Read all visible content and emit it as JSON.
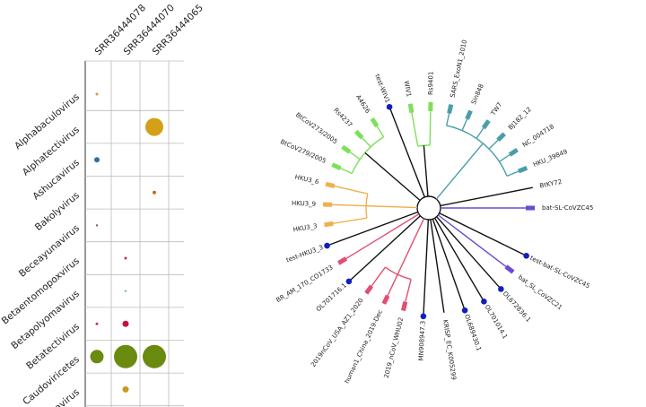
{
  "chart_data": {
    "type": "bubble",
    "columns": [
      "SRR36444078",
      "SRR36444070",
      "SRR36444065"
    ],
    "rows": [
      "Alphabaculovirus",
      "Alphatectivirus",
      "Ashucavirus",
      "Bakolyvirus",
      "Beceayunavirus",
      "Betaentomopoxvirus",
      "Betapolyomavirus",
      "Betatectivirus",
      "Caudoviricetes",
      "navirus"
    ],
    "points": [
      {
        "x": "SRR36444078",
        "y": "Alphabaculovirus",
        "size": 1.5,
        "color": "#c8a040"
      },
      {
        "x": "SRR36444065",
        "y": "Alphatectivirus",
        "size": 10,
        "color": "#d4a017"
      },
      {
        "x": "SRR36444078",
        "y": "Ashucavirus",
        "size": 3,
        "color": "#2f6fa8"
      },
      {
        "x": "SRR36444065",
        "y": "Bakolyvirus",
        "size": 2,
        "color": "#c07020"
      },
      {
        "x": "SRR36444078",
        "y": "Beceayunavirus",
        "size": 1.2,
        "color": "#8a4a8a"
      },
      {
        "x": "SRR36444070",
        "y": "Betaentomopoxvirus",
        "size": 1.5,
        "color": "#d03040"
      },
      {
        "x": "SRR36444070",
        "y": "Betapolyomavirus",
        "size": 1,
        "color": "#40a090"
      },
      {
        "x": "SRR36444078",
        "y": "Betatectivirus",
        "size": 1.5,
        "color": "#d03060"
      },
      {
        "x": "SRR36444070",
        "y": "Betatectivirus",
        "size": 3.5,
        "color": "#c8103a"
      },
      {
        "x": "SRR36444078",
        "y": "Caudoviricetes",
        "size": 7.5,
        "color": "#6b8a10"
      },
      {
        "x": "SRR36444070",
        "y": "Caudoviricetes",
        "size": 13,
        "color": "#6b8a10"
      },
      {
        "x": "SRR36444065",
        "y": "Caudoviricetes",
        "size": 13,
        "color": "#6b8a10"
      },
      {
        "x": "SRR36444070",
        "y": "navirus",
        "size": 3.5,
        "color": "#c89a20"
      }
    ]
  },
  "tree": {
    "leaves": [
      {
        "label": "bat-SL-CoVZC45",
        "color": "#6a4ad6",
        "marked": false
      },
      {
        "label": "BtKY72",
        "color": "#111111",
        "marked": false
      },
      {
        "label": "HKU_39849",
        "color": "#4a9ea8",
        "marked": false
      },
      {
        "label": "NC_004718",
        "color": "#4a9ea8",
        "marked": false
      },
      {
        "label": "BJ182_12",
        "color": "#4a9ea8",
        "marked": false
      },
      {
        "label": "TW7",
        "color": "#4a9ea8",
        "marked": false
      },
      {
        "label": "Sin848",
        "color": "#4a9ea8",
        "marked": false
      },
      {
        "label": "SARS_ExoN1_2010",
        "color": "#4a9ea8",
        "marked": false
      },
      {
        "label": "Rs9401",
        "color": "#7ee05a",
        "marked": false
      },
      {
        "label": "WIV1",
        "color": "#7ee05a",
        "marked": false
      },
      {
        "label": "test-WIV1",
        "color": "#111111",
        "marked": true
      },
      {
        "label": "A4626",
        "color": "#7ee05a",
        "marked": false
      },
      {
        "label": "Rs4237",
        "color": "#7ee05a",
        "marked": false
      },
      {
        "label": "BtCoV273/2005",
        "color": "#7ee05a",
        "marked": false
      },
      {
        "label": "BtCoV279/2005",
        "color": "#7ee05a",
        "marked": false
      },
      {
        "label": "HKU3_6",
        "color": "#f0b050",
        "marked": false
      },
      {
        "label": "HKU3_9",
        "color": "#f0b050",
        "marked": false
      },
      {
        "label": "HKU3_3",
        "color": "#f0b050",
        "marked": false
      },
      {
        "label": "test-HKU3_3",
        "color": "#111111",
        "marked": true
      },
      {
        "label": "BR_AM_170_CO1733",
        "color": "#e05070",
        "marked": false
      },
      {
        "label": "OL701716.1",
        "color": "#111111",
        "marked": true
      },
      {
        "label": "2019nCoV_USA_AZ1_2020",
        "color": "#e05070",
        "marked": false
      },
      {
        "label": "human1_China_2019-Dec",
        "color": "#e05070",
        "marked": false
      },
      {
        "label": "2019_nCoV_WHU02",
        "color": "#e05070",
        "marked": false
      },
      {
        "label": "MN908947.3",
        "color": "#111111",
        "marked": true
      },
      {
        "label": "KRISP_EC_K005299",
        "color": "#111111",
        "marked": false
      },
      {
        "label": "OL689430.1",
        "color": "#111111",
        "marked": true
      },
      {
        "label": "OL701014.1",
        "color": "#111111",
        "marked": true
      },
      {
        "label": "OL672836.1",
        "color": "#111111",
        "marked": true
      },
      {
        "label": "bat_SL_CoVZC21",
        "color": "#6a4ad6",
        "marked": false
      },
      {
        "label": "test-bat-SL-CoVZC45",
        "color": "#111111",
        "marked": true
      }
    ]
  }
}
